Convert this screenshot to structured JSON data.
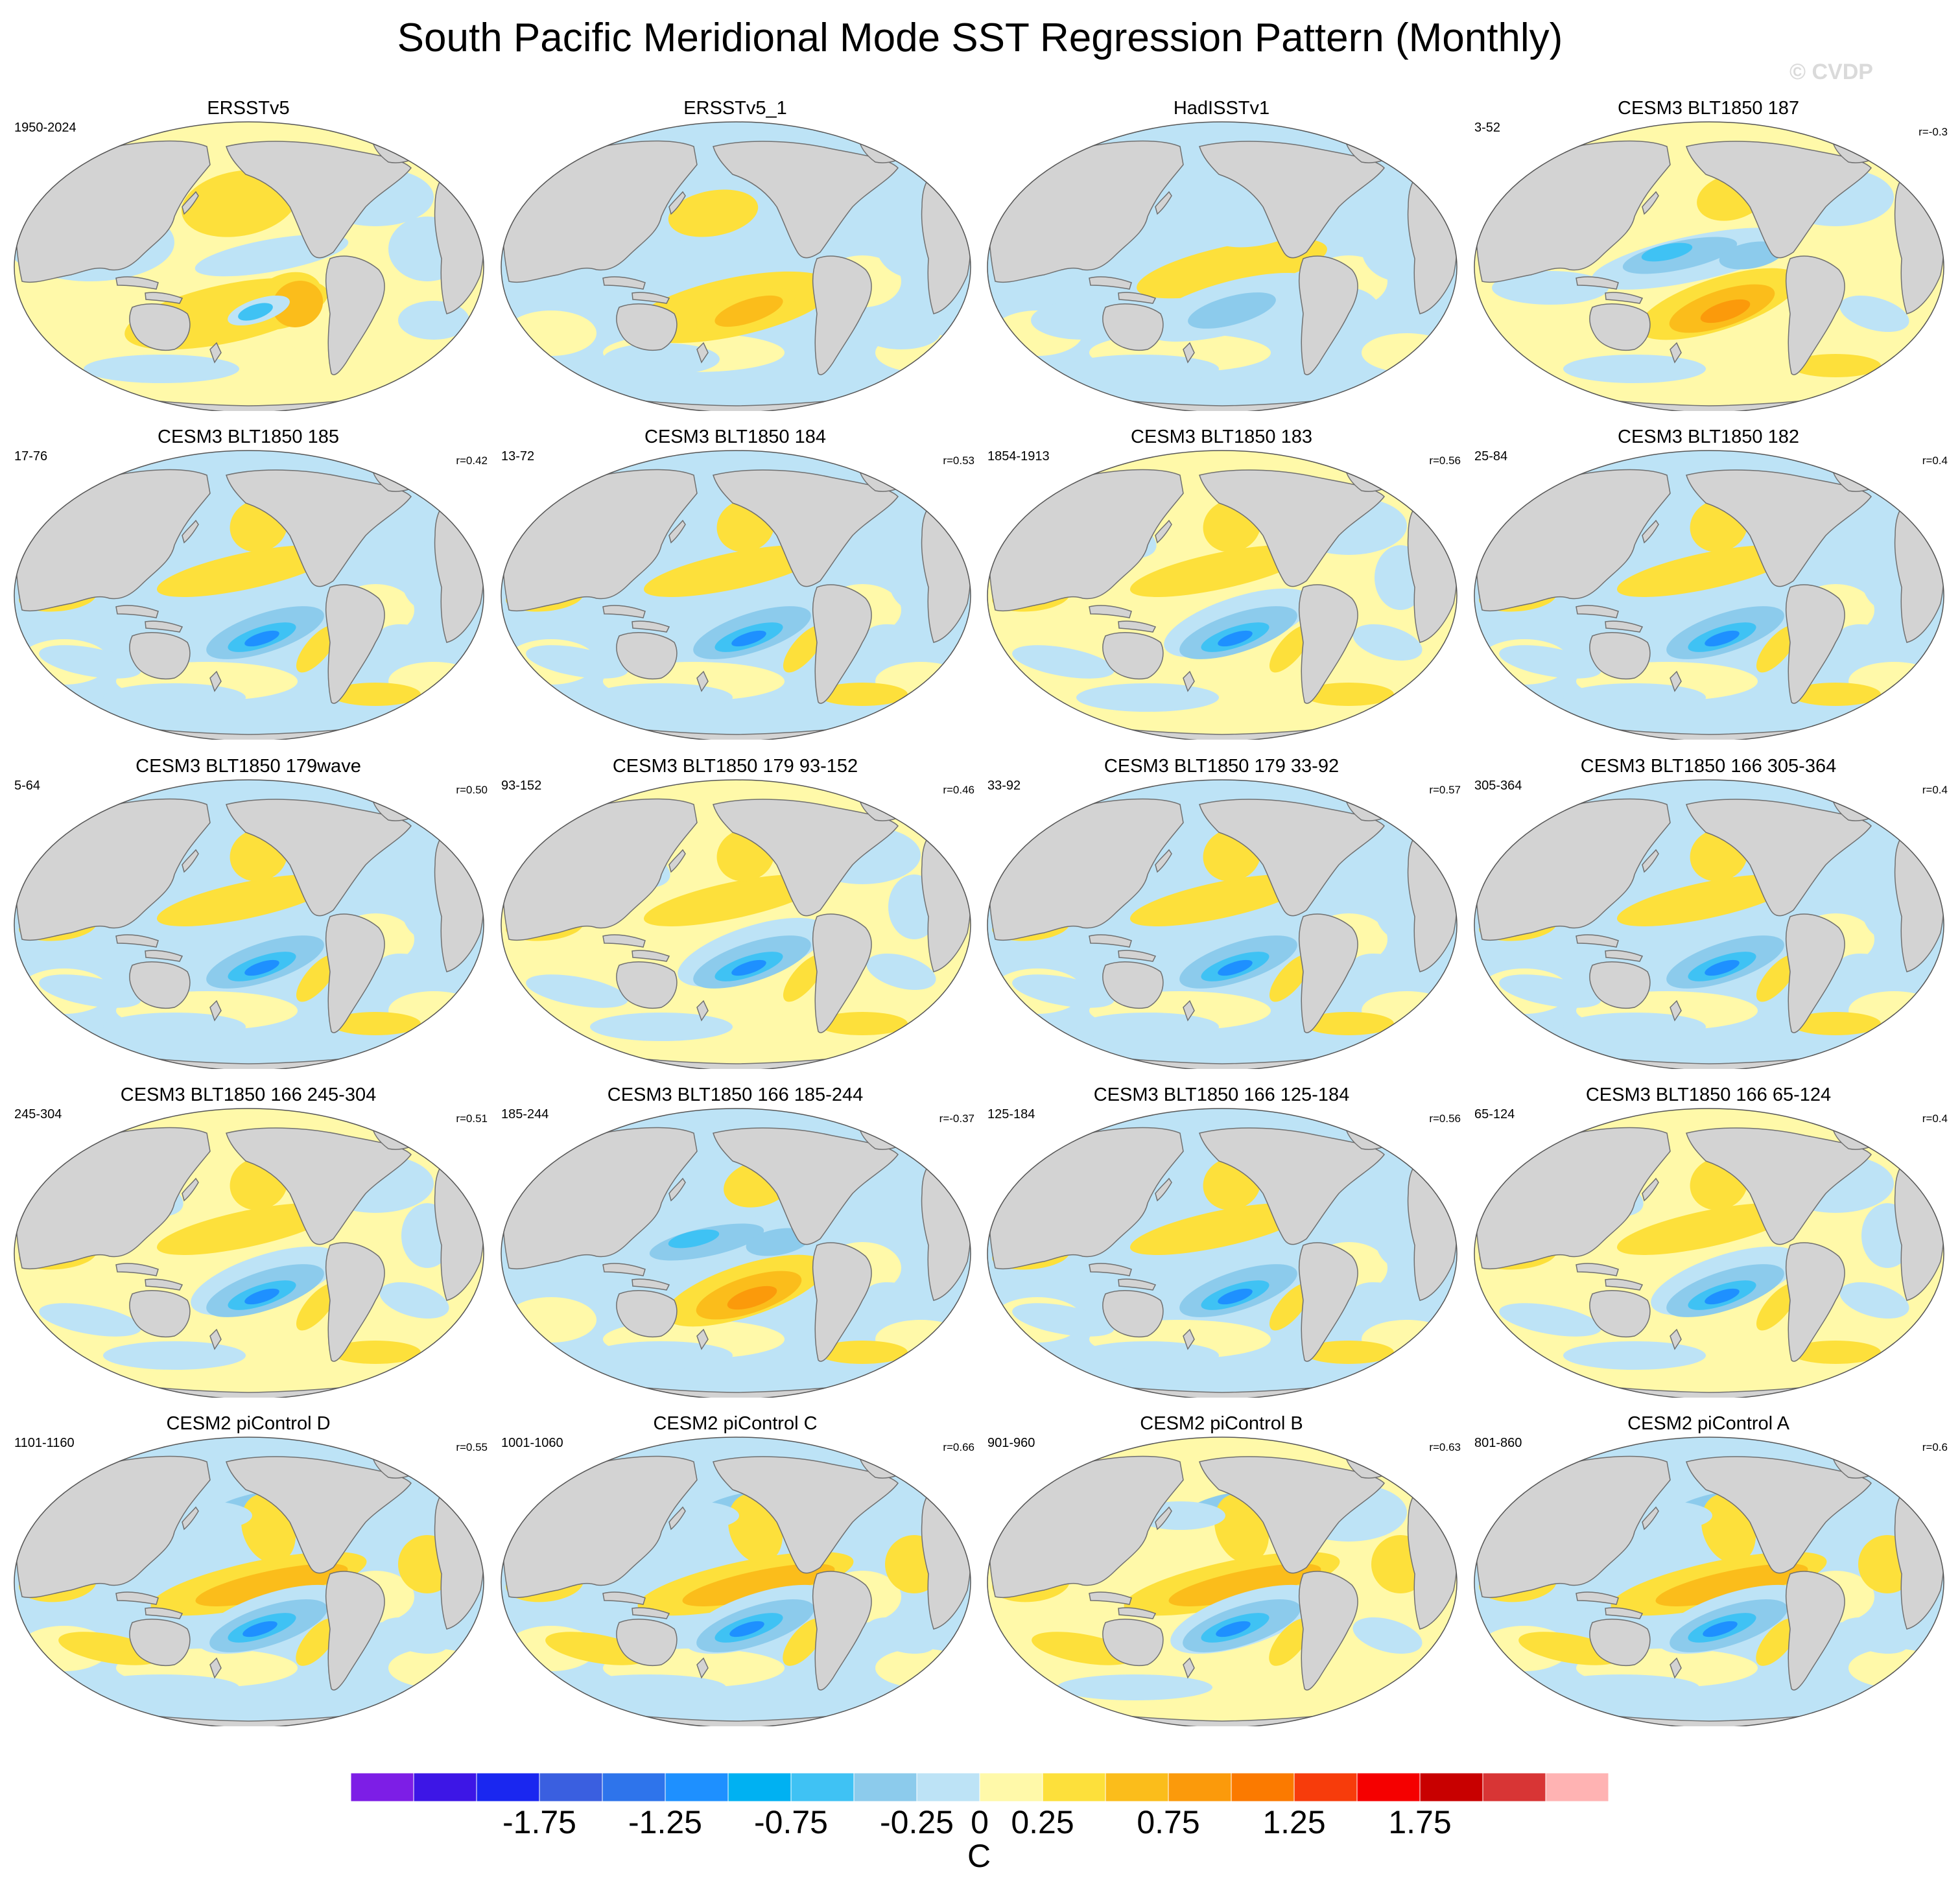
{
  "title": "South Pacific Meridional Mode SST Regression Pattern (Monthly)",
  "watermark": "© CVDP",
  "colors": {
    "land": "#d3d3d3",
    "coast": "#707070",
    "weak_negative": "#b8ddf2",
    "weak_positive": "#fff7a6"
  },
  "panels": [
    {
      "title": "ERSSTv5",
      "years": "1950-2024",
      "corr": "",
      "pattern": "obs1"
    },
    {
      "title": "ERSSTv5_1",
      "years": "",
      "corr": "",
      "pattern": "obs2"
    },
    {
      "title": "HadISSTv1",
      "years": "",
      "corr": "",
      "pattern": "obs3"
    },
    {
      "title": "CESM3 BLT1850 187",
      "years": "3-52",
      "corr": "r=-0.3",
      "pattern": "pos"
    },
    {
      "title": "CESM3 BLT1850 185",
      "years": "17-76",
      "corr": "r=0.42",
      "pattern": "neg"
    },
    {
      "title": "CESM3 BLT1850 184",
      "years": "13-72",
      "corr": "r=0.53",
      "pattern": "neg"
    },
    {
      "title": "CESM3 BLT1850 183",
      "years": "1854-1913",
      "corr": "r=0.56",
      "pattern": "neg"
    },
    {
      "title": "CESM3 BLT1850 182",
      "years": "25-84",
      "corr": "r=0.4",
      "pattern": "neg"
    },
    {
      "title": "CESM3 BLT1850 179wave",
      "years": "5-64",
      "corr": "r=0.50",
      "pattern": "neg"
    },
    {
      "title": "CESM3 BLT1850 179 93-152",
      "years": "93-152",
      "corr": "r=0.46",
      "pattern": "neg"
    },
    {
      "title": "CESM3 BLT1850 179 33-92",
      "years": "33-92",
      "corr": "r=0.57",
      "pattern": "neg"
    },
    {
      "title": "CESM3 BLT1850 166 305-364",
      "years": "305-364",
      "corr": "r=0.4",
      "pattern": "neg"
    },
    {
      "title": "CESM3 BLT1850 166 245-304",
      "years": "245-304",
      "corr": "r=0.51",
      "pattern": "neg"
    },
    {
      "title": "CESM3 BLT1850 166 185-244",
      "years": "185-244",
      "corr": "r=-0.37",
      "pattern": "pos"
    },
    {
      "title": "CESM3 BLT1850 166 125-184",
      "years": "125-184",
      "corr": "r=0.56",
      "pattern": "neg"
    },
    {
      "title": "CESM3 BLT1850 166 65-124",
      "years": "65-124",
      "corr": "r=0.4",
      "pattern": "neg"
    },
    {
      "title": "CESM2 piControl D",
      "years": "1101-1160",
      "corr": "r=0.55",
      "pattern": "neg2"
    },
    {
      "title": "CESM2 piControl C",
      "years": "1001-1060",
      "corr": "r=0.66",
      "pattern": "neg2"
    },
    {
      "title": "CESM2 piControl B",
      "years": "901-960",
      "corr": "r=0.63",
      "pattern": "neg2"
    },
    {
      "title": "CESM2 piControl A",
      "years": "801-860",
      "corr": "r=0.6",
      "pattern": "neg2"
    }
  ],
  "colorbar": {
    "colors": [
      "#7d1ee6",
      "#3d16e6",
      "#1a27f0",
      "#3a5fe0",
      "#2e74eb",
      "#1e90ff",
      "#00b1f2",
      "#3fc2f4",
      "#8ccbec",
      "#bde3f6",
      "#fff9a9",
      "#fde03b",
      "#fbbd1b",
      "#fb9a0b",
      "#fb7a00",
      "#f73c0b",
      "#f50000",
      "#c80000",
      "#d83535",
      "#ffb3b3"
    ],
    "labels": [
      "-1.75",
      "-1.25",
      "-0.75",
      "-0.25",
      "0",
      "0.25",
      "0.75",
      "1.25",
      "1.75"
    ],
    "units": "C"
  }
}
